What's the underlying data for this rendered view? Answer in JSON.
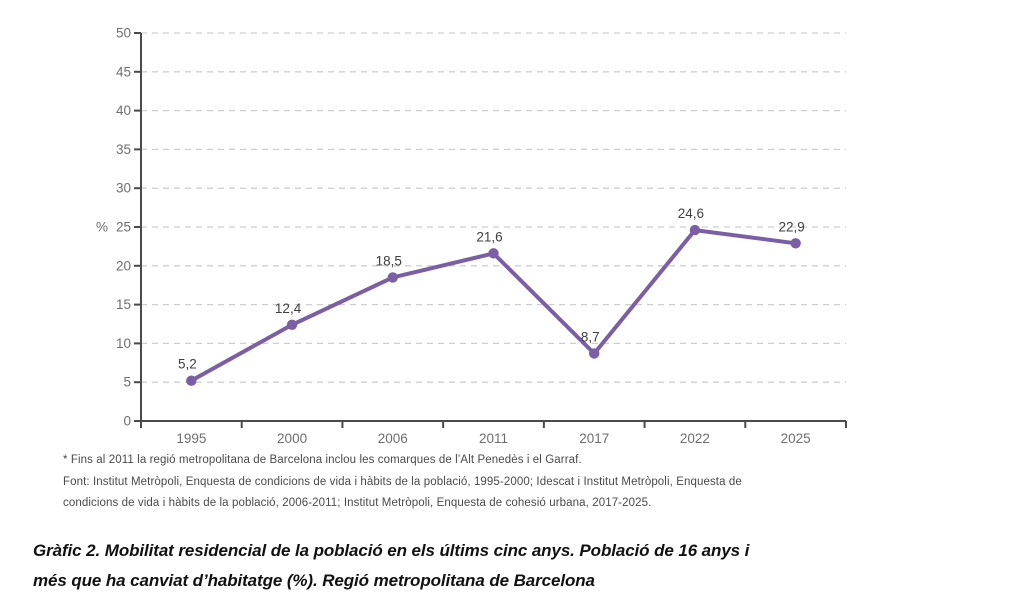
{
  "chart_data": {
    "type": "line",
    "title": "",
    "categories": [
      "1995",
      "2000",
      "2006",
      "2011",
      "2017",
      "2022",
      "2025"
    ],
    "series": [
      {
        "name": "Mobilitat residencial (%)",
        "values": [
          5.2,
          12.4,
          18.5,
          21.6,
          8.7,
          24.6,
          22.9
        ],
        "value_labels": [
          "5,2",
          "12,4",
          "18,5",
          "21,6",
          "8,7",
          "24,6",
          "22,9"
        ]
      }
    ],
    "xlabel": "",
    "ylabel": "%",
    "ylim": [
      0,
      50
    ],
    "ytick_step": 5,
    "grid": "horizontal-dashed",
    "legend_position": "none",
    "colors": {
      "line": "#7a5fa6",
      "marker": "#7a5fa6",
      "grid": "#cfcfcf",
      "axis": "#4a4a4a",
      "tick_label": "#6e6e6e",
      "value_label": "#3f3f3f"
    }
  },
  "footnote": {
    "lines": [
      "* Fins al 2011 la regió metropolitana de Barcelona inclou les comarques de l’Alt Penedès i el Garraf.",
      "Font: Institut Metròpoli, Enquesta de condicions de vida i hàbits de la població, 1995-2000; Idescat i Institut Metròpoli, Enquesta de",
      "condicions de vida i hàbits de la població, 2006-2011; Institut Metròpoli, Enquesta de cohesió urbana, 2017-2025."
    ]
  },
  "caption": {
    "lines": [
      "Gràfic 2. Mobilitat residencial de la població en els últims cinc anys. Població de 16 anys i",
      "més que ha canviat d’habitatge (%). Regió metropolitana de Barcelona"
    ]
  }
}
